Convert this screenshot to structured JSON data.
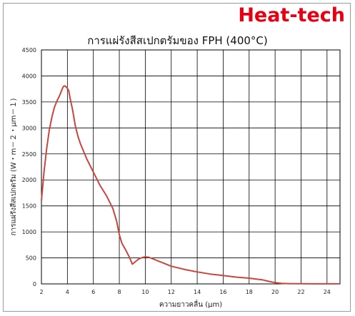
{
  "logo": "Heat-tech",
  "chart_data": {
    "type": "line",
    "title": "การแผ่รังสีสเปกตรัมของ FPH (400°C)",
    "xlabel": "ความยาวคลื่น (µm)",
    "ylabel": "การแผ่รังสีสเปกตรัม (W・m－２・µm－１)",
    "xlim": [
      2,
      25
    ],
    "ylim": [
      0,
      4500
    ],
    "xticks": [
      2,
      4,
      6,
      8,
      10,
      12,
      14,
      16,
      18,
      20,
      22,
      24
    ],
    "yticks": [
      0,
      500,
      1000,
      1500,
      2000,
      2500,
      3000,
      3500,
      4000,
      4500
    ],
    "grid": true,
    "line_color": "#c8463c",
    "series": [
      {
        "x": [
          2.0,
          2.2,
          2.4,
          2.6,
          2.8,
          3.0,
          3.2,
          3.4,
          3.6,
          3.7,
          3.8,
          3.9,
          4.0,
          4.1,
          4.2,
          4.4,
          4.6,
          4.8,
          5.0,
          5.5,
          6.0,
          6.5,
          7.0,
          7.5,
          7.8,
          8.0,
          8.2,
          8.5,
          8.8,
          9.0,
          9.2,
          9.5,
          9.8,
          10.0,
          10.3,
          10.6,
          11.0,
          11.5,
          12.0,
          13.0,
          14.0,
          15.0,
          16.0,
          17.0,
          18.0,
          19.0,
          19.5,
          20.0,
          20.5,
          21.0,
          22.0,
          23.0,
          24.0,
          24.9
        ],
        "values": [
          1600,
          2150,
          2600,
          2950,
          3200,
          3400,
          3520,
          3620,
          3750,
          3800,
          3810,
          3790,
          3760,
          3720,
          3580,
          3350,
          3050,
          2850,
          2700,
          2400,
          2150,
          1900,
          1700,
          1450,
          1200,
          950,
          780,
          650,
          500,
          380,
          420,
          480,
          510,
          520,
          510,
          480,
          440,
          390,
          340,
          280,
          230,
          190,
          160,
          130,
          110,
          80,
          50,
          25,
          10,
          5,
          3,
          2,
          2,
          2
        ]
      }
    ]
  }
}
